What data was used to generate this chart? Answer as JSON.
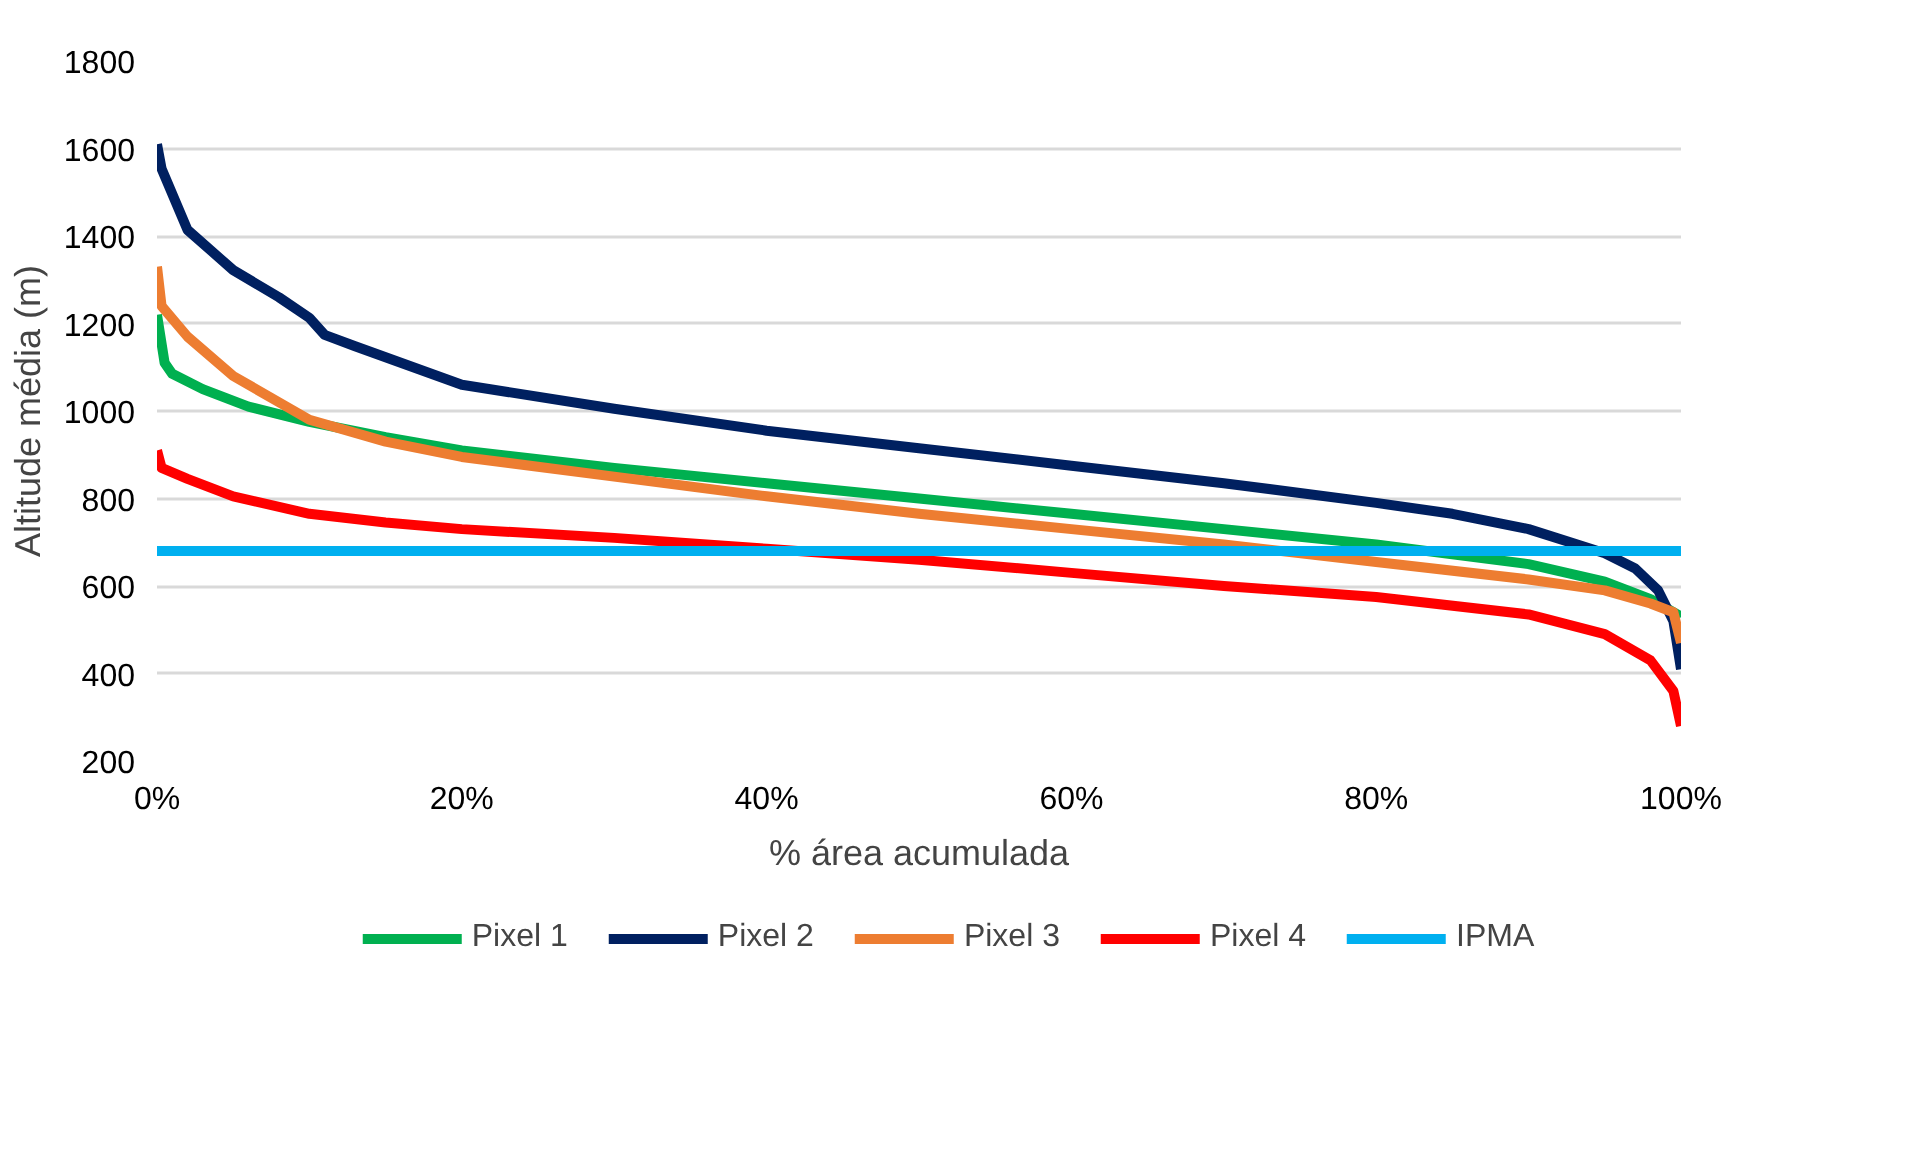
{
  "chart_data": {
    "type": "line",
    "xlabel": "% área acumulada",
    "ylabel": "Altitude média (m)",
    "xlim": [
      0,
      100
    ],
    "ylim": [
      200,
      1800
    ],
    "xticks": [
      {
        "value": 0,
        "label": "0%"
      },
      {
        "value": 20,
        "label": "20%"
      },
      {
        "value": 40,
        "label": "40%"
      },
      {
        "value": 60,
        "label": "60%"
      },
      {
        "value": 80,
        "label": "80%"
      },
      {
        "value": 100,
        "label": "100%"
      }
    ],
    "yticks": [
      200,
      400,
      600,
      800,
      1000,
      1200,
      1400,
      1600,
      1800
    ],
    "grid": "y",
    "legend": "bottom",
    "marker": "none",
    "line_style": "solid",
    "series": [
      {
        "name": "Pixel 1",
        "color": "#00b050",
        "x": [
          0,
          0.5,
          1,
          3,
          6,
          10,
          15,
          20,
          30,
          40,
          50,
          60,
          70,
          80,
          90,
          95,
          98,
          99,
          100
        ],
        "values": [
          1220,
          1110,
          1085,
          1050,
          1010,
          975,
          940,
          910,
          870,
          835,
          800,
          765,
          730,
          695,
          650,
          610,
          570,
          550,
          530
        ]
      },
      {
        "name": "Pixel 2",
        "color": "#002060",
        "x": [
          0,
          0.3,
          2,
          5,
          8,
          10,
          11,
          13,
          20,
          30,
          40,
          50,
          60,
          70,
          80,
          85,
          90,
          95,
          97,
          98.5,
          99.5,
          100
        ],
        "values": [
          1610,
          1554,
          1414,
          1322,
          1260,
          1213,
          1174,
          1148,
          1060,
          1005,
          955,
          915,
          875,
          835,
          790,
          765,
          730,
          675,
          640,
          590,
          520,
          410
        ]
      },
      {
        "name": "Pixel 3",
        "color": "#ed7d31",
        "x": [
          0,
          0.3,
          2,
          5,
          8,
          10,
          15,
          20,
          30,
          40,
          50,
          60,
          70,
          80,
          90,
          95,
          98,
          99.5,
          100
        ],
        "values": [
          1330,
          1240,
          1170,
          1080,
          1020,
          980,
          930,
          895,
          850,
          805,
          765,
          730,
          695,
          655,
          615,
          590,
          560,
          540,
          470
        ]
      },
      {
        "name": "Pixel 4",
        "color": "#ff0000",
        "x": [
          0,
          0.3,
          2,
          5,
          10,
          15,
          20,
          30,
          40,
          50,
          60,
          70,
          80,
          90,
          95,
          98,
          99.5,
          100
        ],
        "values": [
          910,
          870,
          845,
          805,
          765,
          745,
          730,
          710,
          685,
          660,
          630,
          600,
          575,
          535,
          490,
          430,
          360,
          280
        ]
      },
      {
        "name": "IPMA",
        "color": "#00b0f0",
        "x": [
          0,
          100
        ],
        "values": [
          680,
          680
        ]
      }
    ]
  }
}
